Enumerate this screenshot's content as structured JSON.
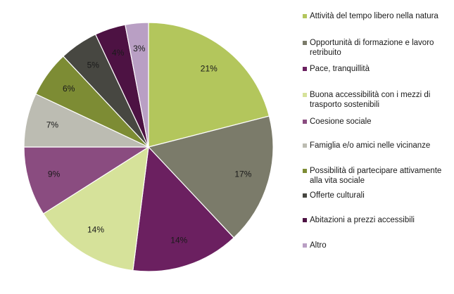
{
  "chart_data": {
    "type": "pie",
    "start_angle_deg": 0,
    "direction": "clockwise",
    "grid": false,
    "legend_position": "right",
    "slices": [
      {
        "label": "Attività del tempo libero nella natura",
        "value": 21,
        "display": "21%",
        "color": "#b3c65c"
      },
      {
        "label": "Opportunità di formazione e lavoro retribuito",
        "value": 17,
        "display": "17%",
        "color": "#7b7b6a"
      },
      {
        "label": "Pace, tranquillità",
        "value": 14,
        "display": "14%",
        "color": "#6b2060"
      },
      {
        "label": "Buona accessibilità con i mezzi di trasporto sostenibili",
        "value": 14,
        "display": "14%",
        "color": "#d6e29a"
      },
      {
        "label": "Coesione sociale",
        "value": 9,
        "display": "9%",
        "color": "#8a4c80"
      },
      {
        "label": "Famiglia e/o amici nelle vicinanze",
        "value": 7,
        "display": "7%",
        "color": "#bcbcb2"
      },
      {
        "label": "Possibilità di partecipare attivamente alla vita sociale",
        "value": 6,
        "display": "6%",
        "color": "#7d8c34"
      },
      {
        "label": "Offerte culturali",
        "value": 5,
        "display": "5%",
        "color": "#474741"
      },
      {
        "label": "Abitazioni a prezzi accessibili",
        "value": 4,
        "display": "4%",
        "color": "#4d1243"
      },
      {
        "label": "Altro",
        "value": 3,
        "display": "3%",
        "color": "#b99fc4"
      }
    ]
  }
}
